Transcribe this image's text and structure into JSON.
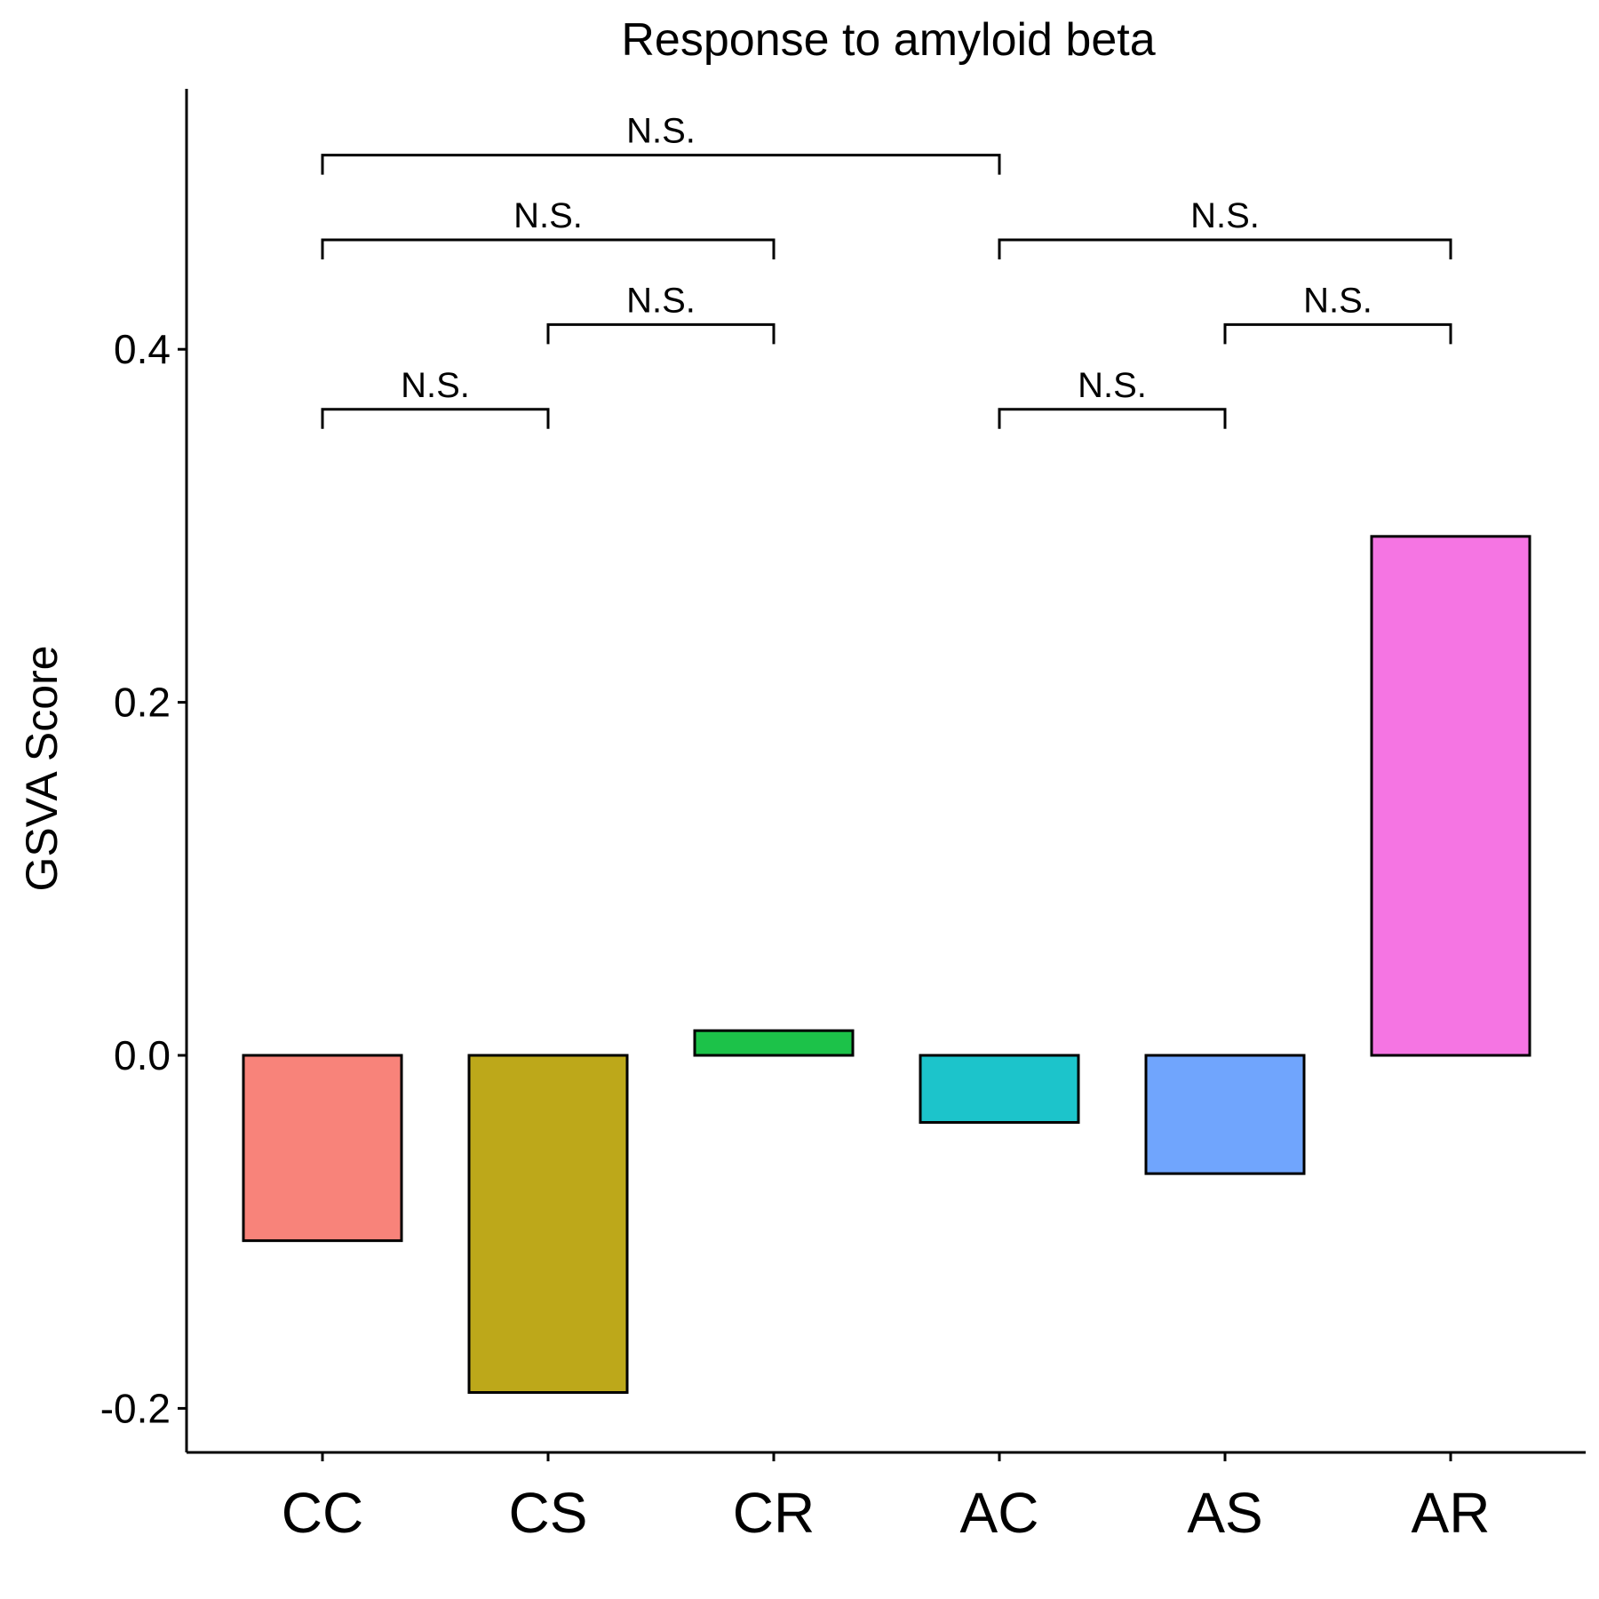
{
  "chart_data": {
    "type": "bar",
    "title": "Response to amyloid beta",
    "xlabel": "",
    "ylabel": "GSVA Score",
    "categories": [
      "CC",
      "CS",
      "CR",
      "AC",
      "AS",
      "AR"
    ],
    "values": [
      -0.105,
      -0.191,
      0.014,
      -0.038,
      -0.067,
      0.294
    ],
    "colors": [
      "#F8837A",
      "#BDA81A",
      "#1CC249",
      "#1CC4CB",
      "#70A5FD",
      "#F575E3"
    ],
    "ylim": [
      -0.225,
      0.545
    ],
    "yticks": [
      -0.2,
      0.0,
      0.2,
      0.4
    ],
    "ytick_labels": [
      "-0.2",
      "0.0",
      "0.2",
      "0.4"
    ],
    "grid": false,
    "legend": "none",
    "comparisons": [
      {
        "from": "CC",
        "to": "CS",
        "y": 0.366,
        "label": "N.S."
      },
      {
        "from": "CS",
        "to": "CR",
        "y": 0.414,
        "label": "N.S."
      },
      {
        "from": "CC",
        "to": "CR",
        "y": 0.462,
        "label": "N.S."
      },
      {
        "from": "CC",
        "to": "AC",
        "y": 0.51,
        "label": "N.S."
      },
      {
        "from": "AC",
        "to": "AS",
        "y": 0.366,
        "label": "N.S."
      },
      {
        "from": "AS",
        "to": "AR",
        "y": 0.414,
        "label": "N.S."
      },
      {
        "from": "AC",
        "to": "AR",
        "y": 0.462,
        "label": "N.S."
      }
    ]
  }
}
